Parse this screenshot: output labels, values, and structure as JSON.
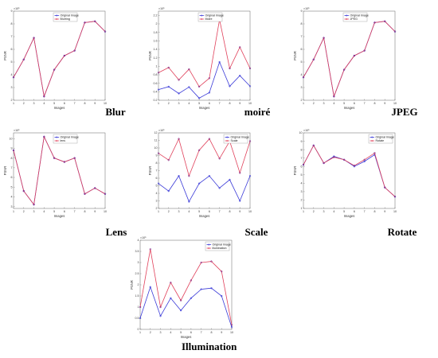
{
  "colors": {
    "original": "#3a3ad8",
    "distorted": "#e0405a",
    "marker": "#6a1a8a",
    "axis": "#666666"
  },
  "chart_data": [
    {
      "type": "line",
      "caption": "Blur",
      "xlabel": "Images",
      "ylabel": "PSNR",
      "exponent": "×10⁵",
      "x": [
        1,
        2,
        3,
        4,
        5,
        6,
        7,
        8,
        9,
        10
      ],
      "xlim": [
        1,
        10
      ],
      "ylim": [
        2,
        9
      ],
      "yticks": [
        2,
        3,
        4,
        5,
        6,
        7,
        8,
        9
      ],
      "legend_position": "top-left",
      "series": [
        {
          "name": "Original Image",
          "values": [
            3.8,
            5.2,
            6.9,
            2.3,
            4.4,
            5.5,
            5.9,
            8.1,
            8.2,
            7.4
          ],
          "color": "original"
        },
        {
          "name": "Blurring",
          "values": [
            3.8,
            5.2,
            6.9,
            2.3,
            4.4,
            5.5,
            5.9,
            8.1,
            8.2,
            7.4
          ],
          "color": "distorted"
        }
      ]
    },
    {
      "type": "line",
      "caption": "moiré",
      "xlabel": "Images",
      "ylabel": "PSNR",
      "exponent": "×10⁵",
      "x": [
        1,
        2,
        3,
        4,
        5,
        6,
        7,
        8,
        9,
        10
      ],
      "xlim": [
        1,
        10
      ],
      "ylim": [
        0.2,
        2.3
      ],
      "yticks": [
        0.2,
        0.4,
        0.6,
        0.8,
        1,
        1.2,
        1.4,
        1.6,
        1.8,
        2,
        2.2
      ],
      "legend_position": "top-left",
      "series": [
        {
          "name": "Original Image",
          "values": [
            0.45,
            0.52,
            0.36,
            0.51,
            0.25,
            0.38,
            1.1,
            0.53,
            0.78,
            0.53
          ],
          "color": "original"
        },
        {
          "name": "Moire",
          "values": [
            0.85,
            0.97,
            0.68,
            0.93,
            0.52,
            0.72,
            2.1,
            0.95,
            1.45,
            0.95
          ],
          "color": "distorted"
        }
      ]
    },
    {
      "type": "line",
      "caption": "JPEG",
      "xlabel": "Images",
      "ylabel": "PSNR",
      "exponent": "×10⁵",
      "x": [
        1,
        2,
        3,
        4,
        5,
        6,
        7,
        8,
        9,
        10
      ],
      "xlim": [
        1,
        10
      ],
      "ylim": [
        2,
        9
      ],
      "yticks": [
        2,
        3,
        4,
        5,
        6,
        7,
        8,
        9
      ],
      "legend_position": "top-left",
      "series": [
        {
          "name": "Original Image",
          "values": [
            3.8,
            5.2,
            6.9,
            2.3,
            4.4,
            5.5,
            5.9,
            8.1,
            8.2,
            7.4
          ],
          "color": "original"
        },
        {
          "name": "JPEG",
          "values": [
            3.8,
            5.2,
            6.9,
            2.3,
            4.4,
            5.5,
            5.9,
            8.1,
            8.2,
            7.4
          ],
          "color": "distorted"
        }
      ]
    },
    {
      "type": "line",
      "caption": "Lens",
      "xlabel": "Images",
      "ylabel": "PSNR",
      "exponent": "×10⁵",
      "x": [
        1,
        2,
        3,
        4,
        5,
        6,
        7,
        8,
        9,
        10
      ],
      "xlim": [
        1,
        10
      ],
      "ylim": [
        2.8,
        10.6
      ],
      "yticks": [
        3,
        4,
        5,
        6,
        7,
        8,
        9,
        10
      ],
      "legend_position": "top-left",
      "series": [
        {
          "name": "Original Image",
          "values": [
            8.8,
            4.6,
            3.2,
            10.2,
            8.0,
            7.6,
            8.0,
            4.3,
            4.9,
            4.3
          ],
          "color": "original"
        },
        {
          "name": "lens",
          "values": [
            8.8,
            4.6,
            3.2,
            10.2,
            8.0,
            7.6,
            8.0,
            4.3,
            4.9,
            4.3
          ],
          "color": "distorted"
        }
      ]
    },
    {
      "type": "line",
      "caption": "Scale",
      "xlabel": "Images",
      "ylabel": "PSNR",
      "exponent": "×10⁵",
      "x": [
        1,
        2,
        3,
        4,
        5,
        6,
        7,
        8,
        9,
        10
      ],
      "xlim": [
        1,
        10
      ],
      "ylim": [
        2,
        12
      ],
      "yticks": [
        2,
        3,
        4,
        5,
        6,
        7,
        8,
        9,
        10,
        11,
        12
      ],
      "legend_position": "top-right",
      "series": [
        {
          "name": "Original Image",
          "values": [
            5.3,
            4.3,
            6.3,
            2.9,
            5.3,
            6.3,
            4.7,
            5.8,
            3.0,
            6.3
          ],
          "color": "original"
        },
        {
          "name": "Scale",
          "values": [
            9.3,
            8.4,
            11.2,
            6.3,
            9.7,
            11.2,
            8.6,
            10.9,
            6.7,
            10.9
          ],
          "color": "distorted"
        }
      ]
    },
    {
      "type": "line",
      "caption": "Rotate",
      "xlabel": "Images",
      "ylabel": "PSNR",
      "exponent": "×10⁵",
      "x": [
        1,
        2,
        3,
        4,
        5,
        6,
        7,
        8,
        9,
        10
      ],
      "xlim": [
        1,
        10
      ],
      "ylim": [
        1,
        10
      ],
      "yticks": [
        1,
        2,
        3,
        4,
        5,
        6,
        7,
        8,
        9,
        10
      ],
      "legend_position": "top-right",
      "series": [
        {
          "name": "Original Image",
          "values": [
            6.2,
            8.5,
            6.4,
            7.2,
            6.8,
            6.0,
            6.6,
            7.4,
            3.5,
            2.4
          ],
          "color": "original"
        },
        {
          "name": "Rotate",
          "values": [
            6.2,
            8.5,
            6.4,
            7.1,
            6.8,
            6.1,
            6.8,
            7.6,
            3.5,
            2.4
          ],
          "color": "distorted"
        }
      ]
    },
    {
      "type": "line",
      "caption": "Illumination",
      "xlabel": "Images",
      "ylabel": "PSNR",
      "exponent": "×10⁵",
      "x": [
        1,
        2,
        3,
        4,
        5,
        6,
        7,
        8,
        9,
        10
      ],
      "xlim": [
        1,
        10
      ],
      "ylim": [
        0,
        4
      ],
      "yticks": [
        0,
        0.5,
        1,
        1.5,
        2,
        2.5,
        3,
        3.5,
        4
      ],
      "legend_position": "top-right",
      "series": [
        {
          "name": "Original Image",
          "values": [
            0.5,
            1.9,
            0.6,
            1.4,
            0.85,
            1.4,
            1.8,
            1.85,
            1.5,
            0.1
          ],
          "color": "original"
        },
        {
          "name": "illumination",
          "values": [
            1.0,
            3.6,
            1.0,
            2.1,
            1.3,
            2.2,
            3.0,
            3.05,
            2.6,
            0.2
          ],
          "color": "distorted"
        }
      ]
    }
  ]
}
